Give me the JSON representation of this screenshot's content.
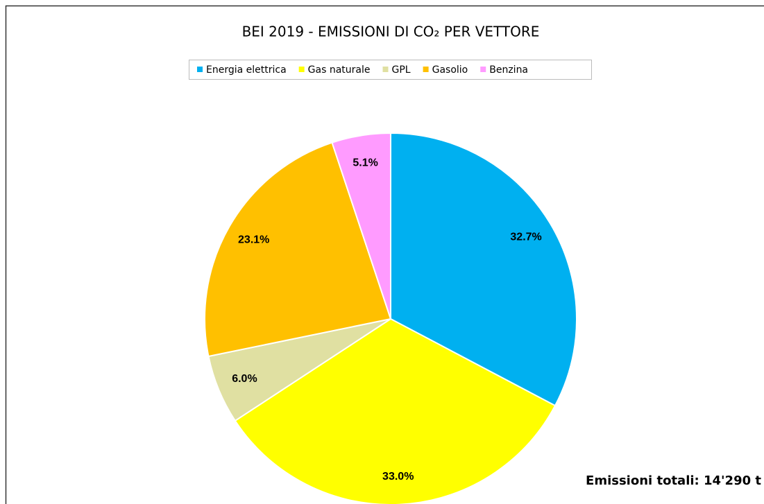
{
  "chart_data": {
    "type": "pie",
    "title": "BEI 2019 - EMISSIONI DI CO₂ PER VETTORE",
    "categories": [
      "Energia elettrica",
      "Gas naturale",
      "GPL",
      "Gasolio",
      "Benzina"
    ],
    "values": [
      32.7,
      33.0,
      6.0,
      23.1,
      5.1
    ],
    "value_labels": [
      "32.7%",
      "33.0%",
      "6.0%",
      "23.1%",
      "5.1%"
    ],
    "colors": [
      "#00b0f0",
      "#ffff00",
      "#e0e0a2",
      "#ffc000",
      "#ff9bff"
    ],
    "legend": "top",
    "annotation": "Emissioni totali: 14'290 t"
  }
}
